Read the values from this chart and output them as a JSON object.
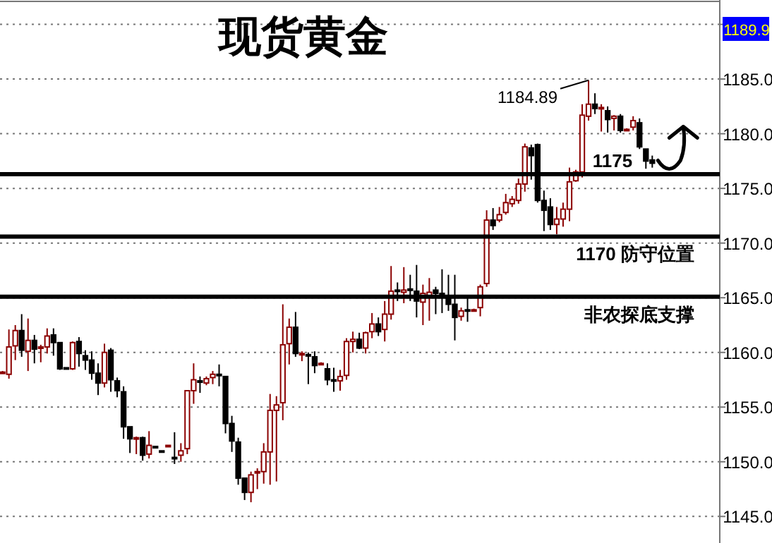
{
  "chart_data": {
    "type": "candlestick",
    "title": "现货黄金",
    "categories": [
      null,
      null,
      null,
      null,
      null,
      null,
      null,
      null,
      null,
      null,
      null,
      null,
      null,
      null,
      null,
      null,
      null,
      null,
      null,
      null,
      null,
      null,
      null,
      null,
      null,
      null,
      null,
      null,
      null,
      null,
      null,
      null,
      null,
      null,
      null,
      null,
      null,
      null,
      null,
      null,
      null,
      null,
      null,
      null,
      null,
      null,
      null,
      null,
      null,
      null,
      null,
      null,
      null,
      null,
      null,
      null,
      null,
      null,
      null,
      null,
      null,
      null,
      null,
      null,
      null,
      null,
      null,
      null,
      null,
      null,
      null,
      null,
      null,
      null,
      null,
      null,
      null,
      null,
      null,
      null,
      null,
      null,
      null,
      null,
      null,
      null,
      null,
      null,
      null,
      null,
      null,
      null,
      null,
      null,
      null,
      null,
      null,
      null,
      null,
      null,
      null,
      null,
      null
    ],
    "ohlc": [
      [
        1158.2,
        1158.3,
        1158.1,
        1158.2
      ],
      [
        1158.0,
        1162.1,
        1157.6,
        1160.5
      ],
      [
        1160.6,
        1162.5,
        1159.3,
        1162.0
      ],
      [
        1162.0,
        1163.5,
        1159.6,
        1160.2
      ],
      [
        1160.1,
        1163.1,
        1158.3,
        1161.1
      ],
      [
        1161.1,
        1161.6,
        1159.0,
        1160.3
      ],
      [
        1160.4,
        1160.7,
        1159.1,
        1160.5
      ],
      [
        1160.5,
        1162.2,
        1159.9,
        1161.5
      ],
      [
        1161.6,
        1162.2,
        1159.7,
        1160.9
      ],
      [
        1160.9,
        1160.9,
        1158.4,
        1158.5
      ],
      [
        1158.6,
        1158.6,
        1158.5,
        1158.5
      ],
      [
        1158.5,
        1161.0,
        1158.4,
        1160.9
      ],
      [
        1161.0,
        1161.4,
        1158.7,
        1159.9
      ],
      [
        1159.7,
        1160.2,
        1158.4,
        1159.3
      ],
      [
        1159.3,
        1160.1,
        1157.5,
        1158.1
      ],
      [
        1158.1,
        1159.0,
        1156.1,
        1157.2
      ],
      [
        1157.2,
        1160.8,
        1156.8,
        1160.0
      ],
      [
        1160.2,
        1160.4,
        1156.4,
        1157.5
      ],
      [
        1157.4,
        1157.7,
        1155.9,
        1156.5
      ],
      [
        1156.4,
        1156.9,
        1152.1,
        1153.2
      ],
      [
        1153.2,
        1153.2,
        1150.8,
        1152.1
      ],
      [
        1152.1,
        1152.3,
        1150.7,
        1152.2
      ],
      [
        1152.2,
        1152.3,
        1150.1,
        1150.6
      ],
      [
        1150.7,
        1152.8,
        1150.3,
        1151.5
      ],
      [
        1151.4,
        1151.4,
        1151.3,
        1151.3
      ],
      [
        1151.0,
        1151.0,
        1150.9,
        1150.9
      ],
      [
        1151.4,
        1151.5,
        1151.4,
        1151.5
      ],
      [
        1150.4,
        1152.7,
        1149.8,
        1150.3
      ],
      [
        1150.6,
        1151.7,
        1150.0,
        1151.0
      ],
      [
        1151.2,
        1156.5,
        1150.7,
        1156.5
      ],
      [
        1156.5,
        1159.0,
        1155.3,
        1157.5
      ],
      [
        1157.4,
        1157.8,
        1156.3,
        1157.3
      ],
      [
        1157.2,
        1157.8,
        1157.0,
        1157.6
      ],
      [
        1157.7,
        1158.3,
        1157.1,
        1158.0
      ],
      [
        1158.0,
        1158.9,
        1156.9,
        1157.9
      ],
      [
        1157.8,
        1157.8,
        1152.6,
        1153.5
      ],
      [
        1153.5,
        1154.2,
        1150.9,
        1151.9
      ],
      [
        1151.8,
        1152.2,
        1147.9,
        1148.5
      ],
      [
        1148.5,
        1148.5,
        1146.5,
        1147.2
      ],
      [
        1147.2,
        1149.1,
        1146.3,
        1148.8
      ],
      [
        1149.0,
        1149.4,
        1147.5,
        1149.1
      ],
      [
        1149.1,
        1151.7,
        1148.0,
        1150.9
      ],
      [
        1150.9,
        1156.2,
        1147.9,
        1154.7
      ],
      [
        1154.7,
        1156.0,
        1148.2,
        1155.2
      ],
      [
        1155.4,
        1164.4,
        1153.8,
        1160.7
      ],
      [
        1160.8,
        1163.1,
        1158.9,
        1162.3
      ],
      [
        1162.3,
        1163.7,
        1159.6,
        1159.9
      ],
      [
        1159.8,
        1160.1,
        1159.2,
        1159.9
      ],
      [
        1159.8,
        1160.0,
        1157.1,
        1159.7
      ],
      [
        1159.6,
        1160.1,
        1158.1,
        1158.8
      ],
      [
        1158.9,
        1159.1,
        1158.9,
        1159.0
      ],
      [
        1158.5,
        1159.0,
        1157.0,
        1157.5
      ],
      [
        1157.5,
        1158.6,
        1156.4,
        1157.4
      ],
      [
        1157.4,
        1158.4,
        1156.5,
        1157.8
      ],
      [
        1157.9,
        1161.3,
        1157.5,
        1161.0
      ],
      [
        1161.0,
        1161.9,
        1160.0,
        1161.2
      ],
      [
        1161.2,
        1161.8,
        1160.3,
        1160.4
      ],
      [
        1160.4,
        1161.9,
        1159.9,
        1161.8
      ],
      [
        1161.9,
        1163.6,
        1161.3,
        1162.6
      ],
      [
        1162.6,
        1163.2,
        1161.5,
        1161.9
      ],
      [
        1162.1,
        1164.7,
        1161.0,
        1163.5
      ],
      [
        1163.5,
        1167.9,
        1163.0,
        1165.6
      ],
      [
        1165.7,
        1166.4,
        1164.7,
        1165.6
      ],
      [
        1165.5,
        1167.8,
        1164.5,
        1165.7
      ],
      [
        1165.8,
        1167.1,
        1164.7,
        1165.7
      ],
      [
        1165.6,
        1168.0,
        1163.2,
        1164.7
      ],
      [
        1164.6,
        1166.2,
        1162.5,
        1165.4
      ],
      [
        1165.1,
        1166.8,
        1162.9,
        1165.5
      ],
      [
        1165.7,
        1166.0,
        1163.5,
        1165.4
      ],
      [
        1165.4,
        1167.6,
        1163.6,
        1165.3
      ],
      [
        1165.2,
        1167.1,
        1163.8,
        1164.4
      ],
      [
        1164.4,
        1167.1,
        1161.1,
        1163.2
      ],
      [
        1163.3,
        1164.1,
        1162.9,
        1163.8
      ],
      [
        1163.9,
        1165.1,
        1162.8,
        1163.8
      ],
      [
        1163.8,
        1164.0,
        1163.8,
        1163.9
      ],
      [
        1164.1,
        1166.2,
        1163.3,
        1166.0
      ],
      [
        1166.3,
        1173.0,
        1166.0,
        1172.1
      ],
      [
        1172.1,
        1173.2,
        1171.2,
        1171.6
      ],
      [
        1172.1,
        1173.3,
        1171.9,
        1172.6
      ],
      [
        1172.8,
        1174.5,
        1172.6,
        1173.7
      ],
      [
        1173.6,
        1174.3,
        1173.3,
        1174.0
      ],
      [
        1173.9,
        1175.9,
        1173.6,
        1175.4
      ],
      [
        1175.4,
        1179.1,
        1174.7,
        1178.8
      ],
      [
        1178.7,
        1179.0,
        1175.8,
        1178.0
      ],
      [
        1179.0,
        1179.1,
        1173.7,
        1173.9
      ],
      [
        1173.9,
        1174.8,
        1171.1,
        1173.0
      ],
      [
        1173.3,
        1174.1,
        1171.2,
        1171.7
      ],
      [
        1171.7,
        1173.3,
        1170.8,
        1172.2
      ],
      [
        1172.2,
        1173.7,
        1171.5,
        1173.1
      ],
      [
        1173.1,
        1176.9,
        1172.0,
        1175.6
      ],
      [
        1175.7,
        1176.7,
        1175.6,
        1176.5
      ],
      [
        1176.5,
        1182.7,
        1176.0,
        1181.7
      ],
      [
        1181.6,
        1184.89,
        1181.2,
        1182.7
      ],
      [
        1182.7,
        1183.7,
        1181.8,
        1182.3
      ],
      [
        1182.4,
        1182.7,
        1180.2,
        1182.4
      ],
      [
        1182.1,
        1182.5,
        1180.1,
        1181.3
      ],
      [
        1181.4,
        1181.7,
        1180.3,
        1181.6
      ],
      [
        1181.6,
        1181.8,
        1180.1,
        1180.3
      ],
      [
        1180.4,
        1180.5,
        1180.3,
        1180.4
      ],
      [
        1180.6,
        1181.6,
        1180.3,
        1181.2
      ],
      [
        1181.0,
        1181.4,
        1178.6,
        1178.8
      ],
      [
        1178.6,
        1178.6,
        1176.8,
        1177.5
      ],
      [
        1177.6,
        1178.0,
        1176.9,
        1177.3
      ]
    ],
    "ylim": [
      1142.7,
      1192.1
    ],
    "yticks": [
      {
        "value": 1145,
        "label": "1145.0"
      },
      {
        "value": 1150,
        "label": "1150.0"
      },
      {
        "value": 1155,
        "label": "1155.0"
      },
      {
        "value": 1160,
        "label": "1160.0"
      },
      {
        "value": 1165,
        "label": "1165.0"
      },
      {
        "value": 1170,
        "label": "1170.0"
      },
      {
        "value": 1175,
        "label": "1175.0"
      },
      {
        "value": 1180,
        "label": "1180.0"
      },
      {
        "value": 1185,
        "label": "1185.0"
      },
      {
        "value": 1190,
        "label": null
      }
    ],
    "grid": "y",
    "ref_lines": [
      {
        "axis": "y",
        "value": 1176.3,
        "color": "#000000"
      },
      {
        "axis": "y",
        "value": 1170.6,
        "label": "1170  防守位置",
        "color": "#000000"
      },
      {
        "axis": "y",
        "value": 1165.1,
        "label": "非农探底支撑",
        "color": "#000000"
      }
    ],
    "annotations": [
      "1175",
      "1184.89",
      "1189.9"
    ]
  }
}
